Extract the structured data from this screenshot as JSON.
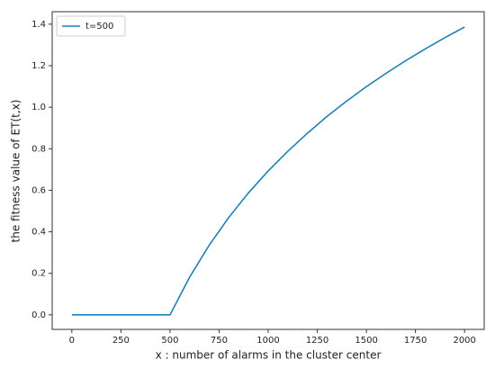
{
  "chart_data": {
    "type": "line",
    "xlabel": "x : number of alarms in the cluster center",
    "ylabel": "the fitness value of ET(t,x)",
    "x": [
      0,
      100,
      200,
      300,
      400,
      500,
      600,
      700,
      800,
      900,
      1000,
      1100,
      1200,
      1300,
      1400,
      1500,
      1600,
      1700,
      1800,
      1900,
      2000
    ],
    "series": [
      {
        "name": "t=500",
        "color": "#1f80b8",
        "values": [
          0,
          0,
          0,
          0,
          0,
          0,
          0.182,
          0.336,
          0.47,
          0.588,
          0.693,
          0.788,
          0.875,
          0.956,
          1.03,
          1.099,
          1.163,
          1.224,
          1.281,
          1.335,
          1.386
        ]
      }
    ],
    "xlim": [
      -100,
      2100
    ],
    "xticks": [
      0,
      250,
      500,
      750,
      1000,
      1250,
      1500,
      1750,
      2000
    ],
    "ylim": [
      -0.07,
      1.46
    ],
    "yticks": [
      {
        "value": 0,
        "label": "0.0"
      },
      {
        "value": 0.2,
        "label": "0.2"
      },
      {
        "value": 0.4,
        "label": "0.4"
      },
      {
        "value": 0.6,
        "label": "0.6"
      },
      {
        "value": 0.8,
        "label": "0.8"
      },
      {
        "value": 1.0,
        "label": "1.0"
      },
      {
        "value": 1.2,
        "label": "1.2"
      },
      {
        "value": 1.4,
        "label": "1.4"
      }
    ],
    "legend": "upper left"
  }
}
